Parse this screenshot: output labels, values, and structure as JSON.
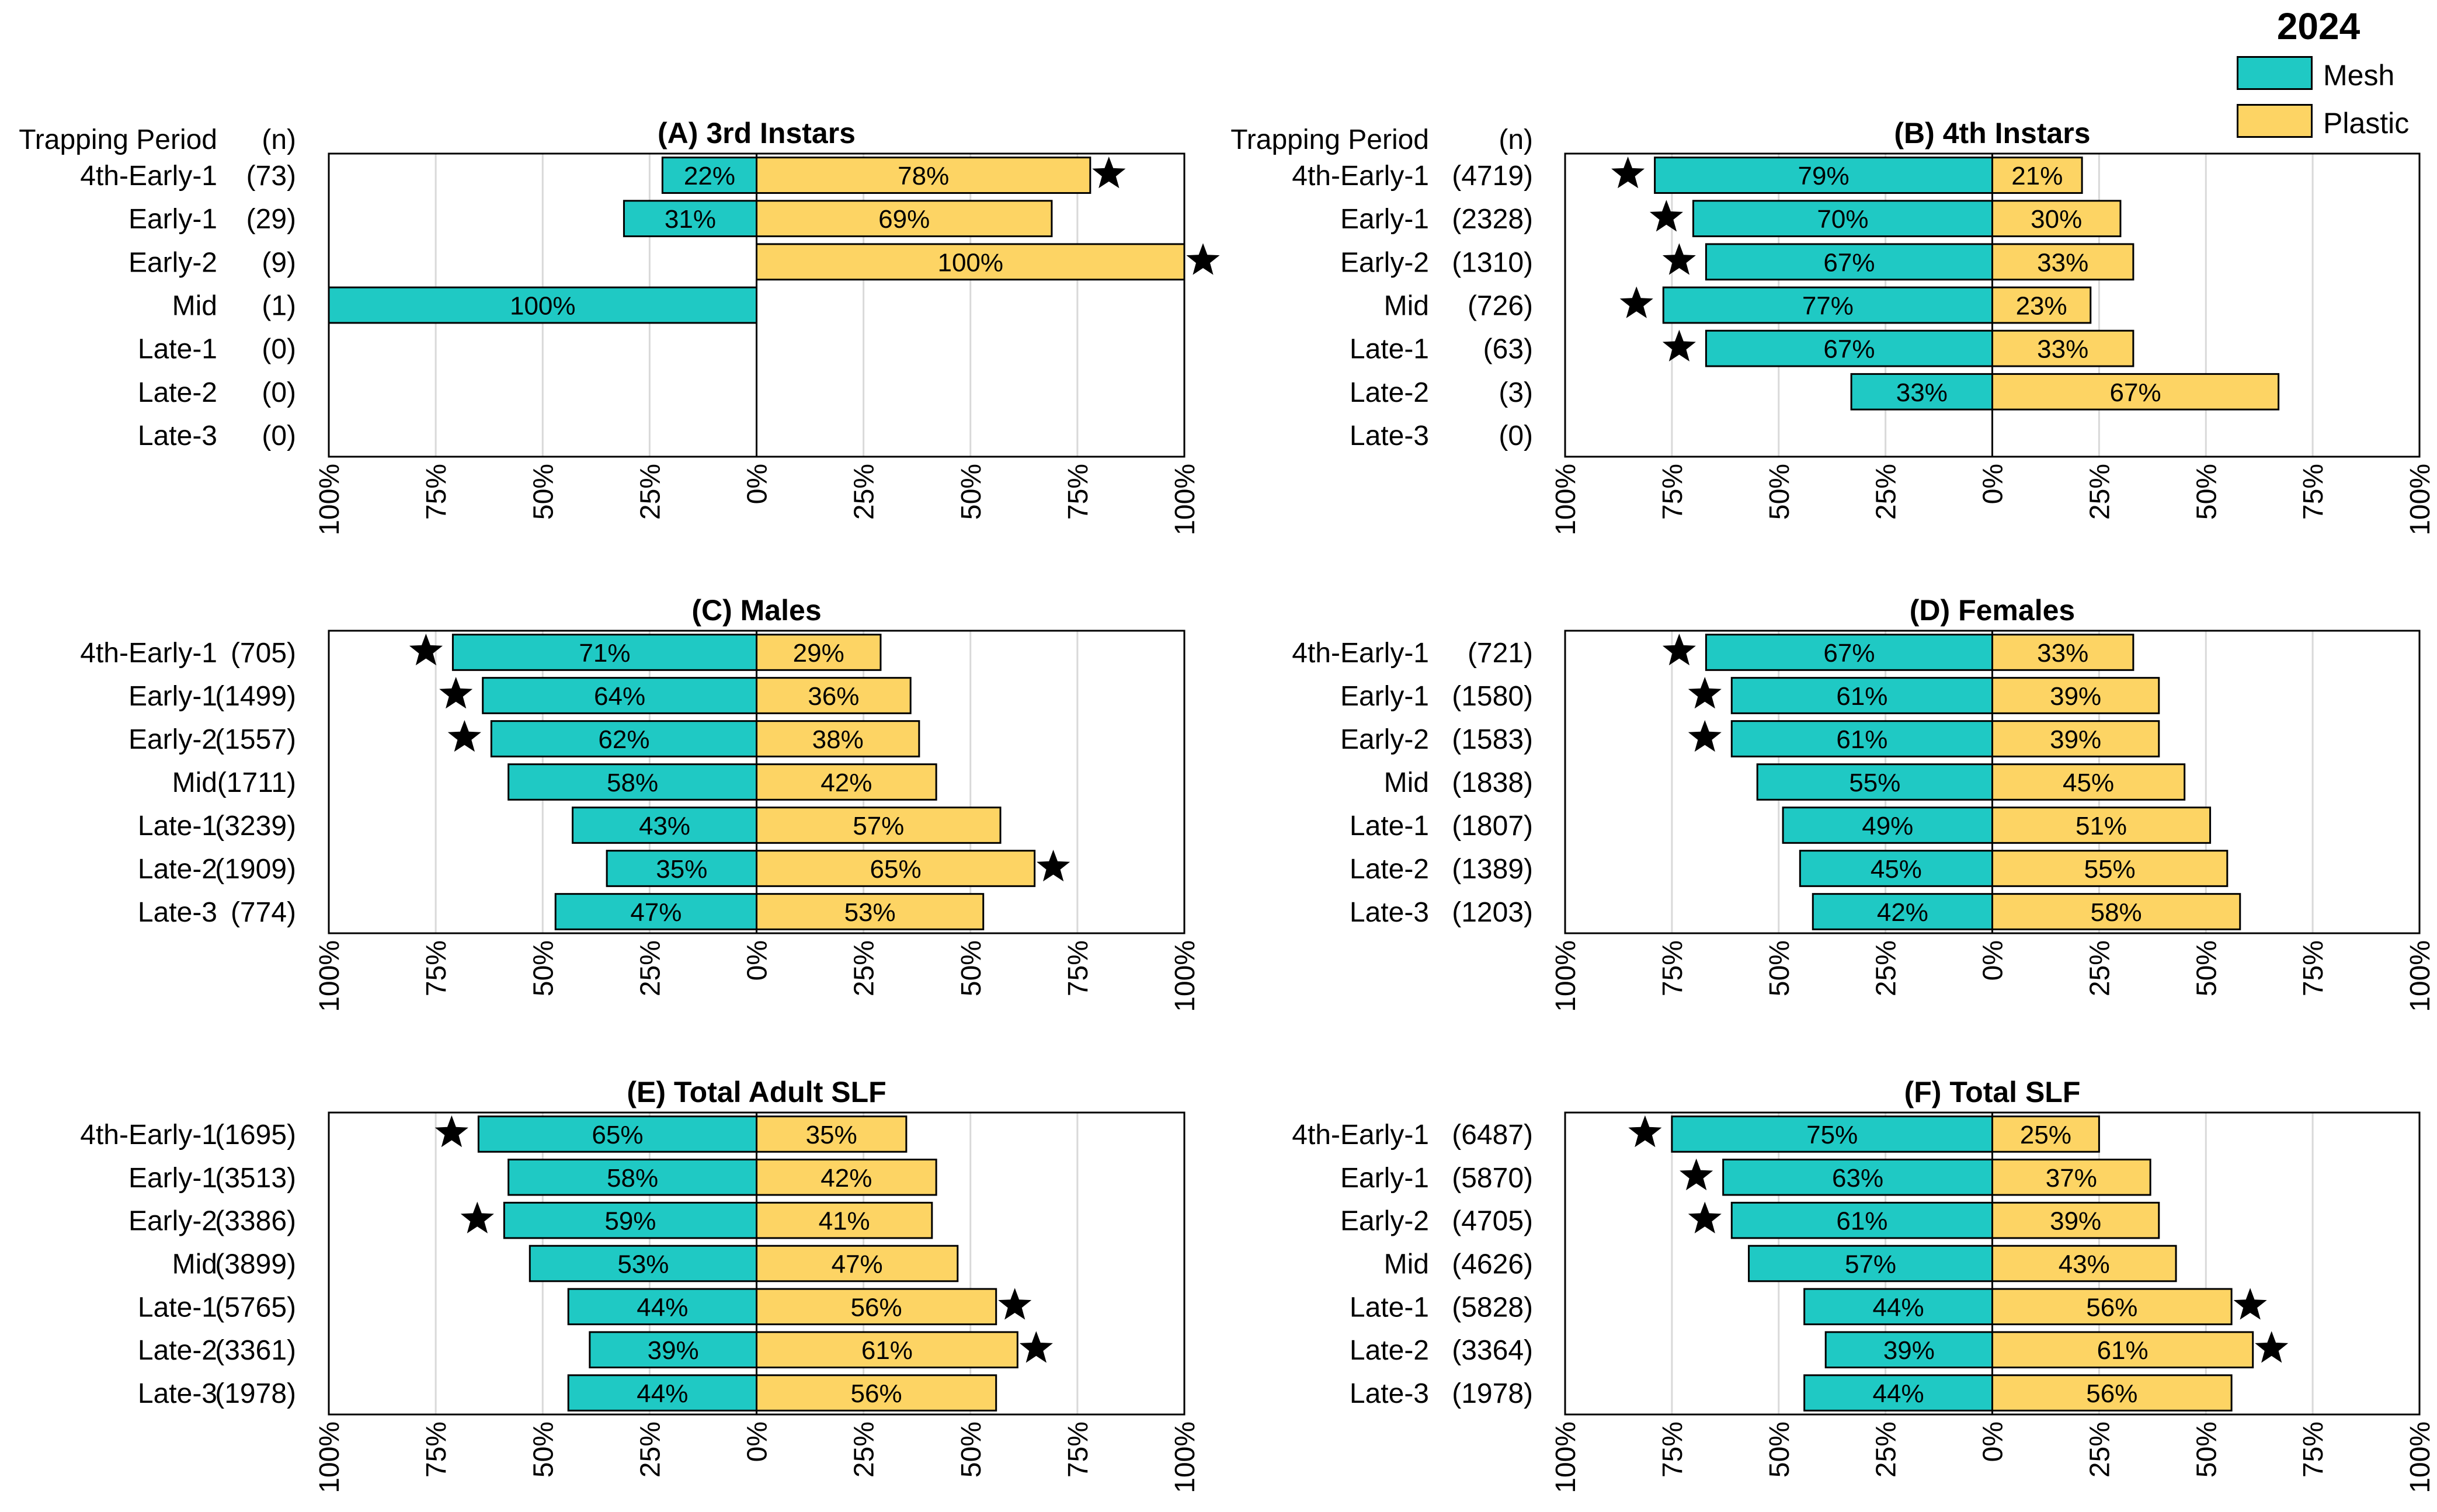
{
  "legend": {
    "year": "2024",
    "items": [
      {
        "label": "Mesh",
        "color": "#1fc9c4"
      },
      {
        "label": "Plastic",
        "color": "#fdd464"
      }
    ]
  },
  "colors": {
    "mesh": "#1fc9c4",
    "plastic": "#fdd464",
    "grid": "#d9d9d9",
    "star": "#000000"
  },
  "chart_data": [
    {
      "type": "bar",
      "panel": "A",
      "title": "(A) 3rd Instars",
      "header_period": "Trapping Period",
      "header_n": "(n)",
      "categories": [
        "4th-Early-1",
        "Early-1",
        "Early-2",
        "Mid",
        "Late-1",
        "Late-2",
        "Late-3"
      ],
      "n_labels": [
        "(73)",
        "(29)",
        "(9)",
        "(1)",
        "(0)",
        "(0)",
        "(0)"
      ],
      "series": [
        {
          "name": "Mesh",
          "values": [
            22,
            31,
            0,
            100,
            0,
            0,
            0
          ],
          "labels": [
            "22%",
            "31%",
            "",
            "100%",
            "",
            "",
            ""
          ]
        },
        {
          "name": "Plastic",
          "values": [
            78,
            69,
            100,
            0,
            0,
            0,
            0
          ],
          "labels": [
            "78%",
            "69%",
            "100%",
            "",
            "",
            "",
            ""
          ]
        }
      ],
      "stars": [
        {
          "row": 0,
          "side": "plastic"
        },
        {
          "row": 2,
          "side": "plastic"
        }
      ],
      "xlim": [
        -100,
        100
      ],
      "xticks": [
        "100%",
        "75%",
        "50%",
        "25%",
        "0%",
        "25%",
        "50%",
        "75%",
        "100%"
      ]
    },
    {
      "type": "bar",
      "panel": "B",
      "title": "(B) 4th Instars",
      "header_period": "Trapping Period",
      "header_n": "(n)",
      "categories": [
        "4th-Early-1",
        "Early-1",
        "Early-2",
        "Mid",
        "Late-1",
        "Late-2",
        "Late-3"
      ],
      "n_labels": [
        "(4719)",
        "(2328)",
        "(1310)",
        "(726)",
        "(63)",
        "(3)",
        "(0)"
      ],
      "series": [
        {
          "name": "Mesh",
          "values": [
            79,
            70,
            67,
            77,
            67,
            33,
            0
          ],
          "labels": [
            "79%",
            "70%",
            "67%",
            "77%",
            "67%",
            "33%",
            ""
          ]
        },
        {
          "name": "Plastic",
          "values": [
            21,
            30,
            33,
            23,
            33,
            67,
            0
          ],
          "labels": [
            "21%",
            "30%",
            "33%",
            "23%",
            "33%",
            "67%",
            ""
          ]
        }
      ],
      "stars": [
        {
          "row": 0,
          "side": "mesh"
        },
        {
          "row": 1,
          "side": "mesh"
        },
        {
          "row": 2,
          "side": "mesh"
        },
        {
          "row": 3,
          "side": "mesh"
        },
        {
          "row": 4,
          "side": "mesh"
        }
      ],
      "xlim": [
        -100,
        100
      ],
      "xticks": [
        "100%",
        "75%",
        "50%",
        "25%",
        "0%",
        "25%",
        "50%",
        "75%",
        "100%"
      ]
    },
    {
      "type": "bar",
      "panel": "C",
      "title": "(C) Males",
      "header_period": "",
      "header_n": "",
      "categories": [
        "4th-Early-1",
        "Early-1",
        "Early-2",
        "Mid",
        "Late-1",
        "Late-2",
        "Late-3"
      ],
      "n_labels": [
        "(705)",
        "(1499)",
        "(1557)",
        "(1711)",
        "(3239)",
        "(1909)",
        "(774)"
      ],
      "series": [
        {
          "name": "Mesh",
          "values": [
            71,
            64,
            62,
            58,
            43,
            35,
            47
          ],
          "labels": [
            "71%",
            "64%",
            "62%",
            "58%",
            "43%",
            "35%",
            "47%"
          ]
        },
        {
          "name": "Plastic",
          "values": [
            29,
            36,
            38,
            42,
            57,
            65,
            53
          ],
          "labels": [
            "29%",
            "36%",
            "38%",
            "42%",
            "57%",
            "65%",
            "53%"
          ]
        }
      ],
      "stars": [
        {
          "row": 0,
          "side": "mesh"
        },
        {
          "row": 1,
          "side": "mesh"
        },
        {
          "row": 2,
          "side": "mesh"
        },
        {
          "row": 5,
          "side": "plastic"
        }
      ],
      "xlim": [
        -100,
        100
      ],
      "xticks": [
        "100%",
        "75%",
        "50%",
        "25%",
        "0%",
        "25%",
        "50%",
        "75%",
        "100%"
      ]
    },
    {
      "type": "bar",
      "panel": "D",
      "title": "(D) Females",
      "header_period": "",
      "header_n": "",
      "categories": [
        "4th-Early-1",
        "Early-1",
        "Early-2",
        "Mid",
        "Late-1",
        "Late-2",
        "Late-3"
      ],
      "n_labels": [
        "(721)",
        "(1580)",
        "(1583)",
        "(1838)",
        "(1807)",
        "(1389)",
        "(1203)"
      ],
      "series": [
        {
          "name": "Mesh",
          "values": [
            67,
            61,
            61,
            55,
            49,
            45,
            42
          ],
          "labels": [
            "67%",
            "61%",
            "61%",
            "55%",
            "49%",
            "45%",
            "42%"
          ]
        },
        {
          "name": "Plastic",
          "values": [
            33,
            39,
            39,
            45,
            51,
            55,
            58
          ],
          "labels": [
            "33%",
            "39%",
            "39%",
            "45%",
            "51%",
            "55%",
            "58%"
          ]
        }
      ],
      "stars": [
        {
          "row": 0,
          "side": "mesh"
        },
        {
          "row": 1,
          "side": "mesh"
        },
        {
          "row": 2,
          "side": "mesh"
        }
      ],
      "xlim": [
        -100,
        100
      ],
      "xticks": [
        "100%",
        "75%",
        "50%",
        "25%",
        "0%",
        "25%",
        "50%",
        "75%",
        "100%"
      ]
    },
    {
      "type": "bar",
      "panel": "E",
      "title": "(E) Total Adult SLF",
      "header_period": "",
      "header_n": "",
      "categories": [
        "4th-Early-1",
        "Early-1",
        "Early-2",
        "Mid",
        "Late-1",
        "Late-2",
        "Late-3"
      ],
      "n_labels": [
        "(1695)",
        "(3513)",
        "(3386)",
        "(3899)",
        "(5765)",
        "(3361)",
        "(1978)"
      ],
      "series": [
        {
          "name": "Mesh",
          "values": [
            65,
            58,
            59,
            53,
            44,
            39,
            44
          ],
          "labels": [
            "65%",
            "58%",
            "59%",
            "53%",
            "44%",
            "39%",
            "44%"
          ]
        },
        {
          "name": "Plastic",
          "values": [
            35,
            42,
            41,
            47,
            56,
            61,
            56
          ],
          "labels": [
            "35%",
            "42%",
            "41%",
            "47%",
            "56%",
            "61%",
            "56%"
          ]
        }
      ],
      "stars": [
        {
          "row": 0,
          "side": "mesh"
        },
        {
          "row": 2,
          "side": "mesh"
        },
        {
          "row": 4,
          "side": "plastic"
        },
        {
          "row": 5,
          "side": "plastic"
        }
      ],
      "xlim": [
        -100,
        100
      ],
      "xticks": [
        "100%",
        "75%",
        "50%",
        "25%",
        "0%",
        "25%",
        "50%",
        "75%",
        "100%"
      ]
    },
    {
      "type": "bar",
      "panel": "F",
      "title": "(F) Total SLF",
      "header_period": "",
      "header_n": "",
      "categories": [
        "4th-Early-1",
        "Early-1",
        "Early-2",
        "Mid",
        "Late-1",
        "Late-2",
        "Late-3"
      ],
      "n_labels": [
        "(6487)",
        "(5870)",
        "(4705)",
        "(4626)",
        "(5828)",
        "(3364)",
        "(1978)"
      ],
      "series": [
        {
          "name": "Mesh",
          "values": [
            75,
            63,
            61,
            57,
            44,
            39,
            44
          ],
          "labels": [
            "75%",
            "63%",
            "61%",
            "57%",
            "44%",
            "39%",
            "44%"
          ]
        },
        {
          "name": "Plastic",
          "values": [
            25,
            37,
            39,
            43,
            56,
            61,
            56
          ],
          "labels": [
            "25%",
            "37%",
            "39%",
            "43%",
            "56%",
            "61%",
            "56%"
          ]
        }
      ],
      "stars": [
        {
          "row": 0,
          "side": "mesh"
        },
        {
          "row": 1,
          "side": "mesh"
        },
        {
          "row": 2,
          "side": "mesh"
        },
        {
          "row": 4,
          "side": "plastic"
        },
        {
          "row": 5,
          "side": "plastic"
        }
      ],
      "xlim": [
        -100,
        100
      ],
      "xticks": [
        "100%",
        "75%",
        "50%",
        "25%",
        "0%",
        "25%",
        "50%",
        "75%",
        "100%"
      ]
    }
  ]
}
